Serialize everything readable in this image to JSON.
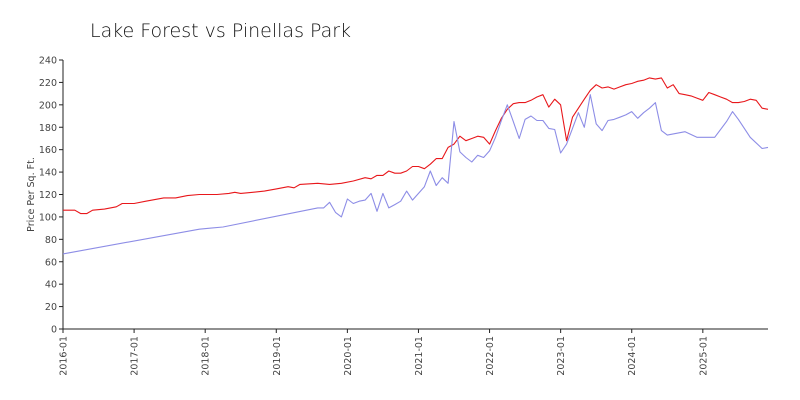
{
  "chart_data": {
    "type": "line",
    "title": "Lake Forest vs Pinellas Park",
    "xlabel": "",
    "ylabel": "Price Per Sq. Ft.",
    "ylim": [
      0,
      240
    ],
    "yticks": [
      0,
      20,
      40,
      60,
      80,
      100,
      120,
      140,
      160,
      180,
      200,
      220,
      240
    ],
    "xlim": [
      "2016-01",
      "2025-12"
    ],
    "xticks": [
      "2016-01",
      "2017-01",
      "2018-01",
      "2019-01",
      "2020-01",
      "2021-01",
      "2022-01",
      "2023-01",
      "2024-01",
      "2025-01"
    ],
    "grid": false,
    "legend": "none",
    "series": [
      {
        "color": "#e8171b",
        "points": [
          [
            "2016-01",
            106
          ],
          [
            "2016-03",
            106
          ],
          [
            "2016-04",
            103
          ],
          [
            "2016-05",
            103
          ],
          [
            "2016-06",
            106
          ],
          [
            "2016-08",
            107
          ],
          [
            "2016-10",
            109
          ],
          [
            "2016-11",
            112
          ],
          [
            "2017-01",
            112
          ],
          [
            "2017-03",
            114
          ],
          [
            "2017-06",
            117
          ],
          [
            "2017-08",
            117
          ],
          [
            "2017-10",
            119
          ],
          [
            "2017-12",
            120
          ],
          [
            "2018-03",
            120
          ],
          [
            "2018-05",
            121
          ],
          [
            "2018-06",
            122
          ],
          [
            "2018-07",
            121
          ],
          [
            "2018-09",
            122
          ],
          [
            "2018-11",
            123
          ],
          [
            "2019-01",
            125
          ],
          [
            "2019-03",
            127
          ],
          [
            "2019-04",
            126
          ],
          [
            "2019-05",
            129
          ],
          [
            "2019-08",
            130
          ],
          [
            "2019-10",
            129
          ],
          [
            "2019-12",
            130
          ],
          [
            "2020-02",
            132
          ],
          [
            "2020-04",
            135
          ],
          [
            "2020-05",
            134
          ],
          [
            "2020-06",
            137
          ],
          [
            "2020-07",
            137
          ],
          [
            "2020-08",
            141
          ],
          [
            "2020-09",
            139
          ],
          [
            "2020-10",
            139
          ],
          [
            "2020-11",
            141
          ],
          [
            "2020-12",
            145
          ],
          [
            "2021-01",
            145
          ],
          [
            "2021-02",
            143
          ],
          [
            "2021-03",
            147
          ],
          [
            "2021-04",
            152
          ],
          [
            "2021-05",
            152
          ],
          [
            "2021-06",
            162
          ],
          [
            "2021-07",
            165
          ],
          [
            "2021-08",
            172
          ],
          [
            "2021-09",
            168
          ],
          [
            "2021-10",
            170
          ],
          [
            "2021-11",
            172
          ],
          [
            "2021-12",
            171
          ],
          [
            "2022-01",
            165
          ],
          [
            "2022-02",
            177
          ],
          [
            "2022-03",
            188
          ],
          [
            "2022-04",
            196
          ],
          [
            "2022-05",
            201
          ],
          [
            "2022-06",
            202
          ],
          [
            "2022-07",
            202
          ],
          [
            "2022-08",
            204
          ],
          [
            "2022-09",
            207
          ],
          [
            "2022-10",
            209
          ],
          [
            "2022-11",
            198
          ],
          [
            "2022-12",
            205
          ],
          [
            "2023-01",
            200
          ],
          [
            "2023-02",
            168
          ],
          [
            "2023-03",
            189
          ],
          [
            "2023-04",
            197
          ],
          [
            "2023-05",
            205
          ],
          [
            "2023-06",
            213
          ],
          [
            "2023-07",
            218
          ],
          [
            "2023-08",
            215
          ],
          [
            "2023-09",
            216
          ],
          [
            "2023-10",
            214
          ],
          [
            "2023-11",
            216
          ],
          [
            "2023-12",
            218
          ],
          [
            "2024-01",
            219
          ],
          [
            "2024-02",
            221
          ],
          [
            "2024-03",
            222
          ],
          [
            "2024-04",
            224
          ],
          [
            "2024-05",
            223
          ],
          [
            "2024-06",
            224
          ],
          [
            "2024-07",
            215
          ],
          [
            "2024-08",
            218
          ],
          [
            "2024-09",
            210
          ],
          [
            "2024-10",
            209
          ],
          [
            "2024-11",
            208
          ],
          [
            "2024-12",
            206
          ],
          [
            "2025-01",
            204
          ],
          [
            "2025-02",
            211
          ],
          [
            "2025-03",
            209
          ],
          [
            "2025-04",
            207
          ],
          [
            "2025-05",
            205
          ],
          [
            "2025-06",
            202
          ],
          [
            "2025-07",
            202
          ],
          [
            "2025-08",
            203
          ],
          [
            "2025-09",
            205
          ],
          [
            "2025-10",
            204
          ],
          [
            "2025-11",
            197
          ],
          [
            "2025-12",
            196
          ]
        ]
      },
      {
        "color": "#8d8de6",
        "points": [
          [
            "2016-01",
            67
          ],
          [
            "2017-12",
            89
          ],
          [
            "2018-02",
            90
          ],
          [
            "2018-04",
            91
          ],
          [
            "2019-08",
            108
          ],
          [
            "2019-09",
            108
          ],
          [
            "2019-10",
            113
          ],
          [
            "2019-11",
            104
          ],
          [
            "2019-12",
            100
          ],
          [
            "2020-01",
            116
          ],
          [
            "2020-02",
            112
          ],
          [
            "2020-03",
            114
          ],
          [
            "2020-04",
            115
          ],
          [
            "2020-05",
            121
          ],
          [
            "2020-06",
            105
          ],
          [
            "2020-07",
            121
          ],
          [
            "2020-08",
            108
          ],
          [
            "2020-09",
            111
          ],
          [
            "2020-10",
            114
          ],
          [
            "2020-11",
            123
          ],
          [
            "2020-12",
            115
          ],
          [
            "2021-01",
            121
          ],
          [
            "2021-02",
            127
          ],
          [
            "2021-03",
            141
          ],
          [
            "2021-04",
            128
          ],
          [
            "2021-05",
            135
          ],
          [
            "2021-06",
            130
          ],
          [
            "2021-07",
            185
          ],
          [
            "2021-08",
            158
          ],
          [
            "2021-09",
            153
          ],
          [
            "2021-10",
            149
          ],
          [
            "2021-11",
            155
          ],
          [
            "2021-12",
            153
          ],
          [
            "2022-01",
            159
          ],
          [
            "2022-02",
            171
          ],
          [
            "2022-03",
            186
          ],
          [
            "2022-04",
            200
          ],
          [
            "2022-05",
            185
          ],
          [
            "2022-06",
            170
          ],
          [
            "2022-07",
            187
          ],
          [
            "2022-08",
            190
          ],
          [
            "2022-09",
            186
          ],
          [
            "2022-10",
            186
          ],
          [
            "2022-11",
            179
          ],
          [
            "2022-12",
            178
          ],
          [
            "2023-01",
            157
          ],
          [
            "2023-02",
            165
          ],
          [
            "2023-03",
            179
          ],
          [
            "2023-04",
            193
          ],
          [
            "2023-05",
            180
          ],
          [
            "2023-06",
            209
          ],
          [
            "2023-07",
            183
          ],
          [
            "2023-08",
            177
          ],
          [
            "2023-09",
            186
          ],
          [
            "2023-10",
            187
          ],
          [
            "2023-11",
            189
          ],
          [
            "2023-12",
            191
          ],
          [
            "2024-01",
            194
          ],
          [
            "2024-02",
            188
          ],
          [
            "2024-03",
            193
          ],
          [
            "2024-04",
            197
          ],
          [
            "2024-05",
            202
          ],
          [
            "2024-06",
            177
          ],
          [
            "2024-07",
            173
          ],
          [
            "2024-10",
            176
          ],
          [
            "2024-12",
            171
          ],
          [
            "2025-02",
            171
          ],
          [
            "2025-03",
            171
          ],
          [
            "2025-05",
            185
          ],
          [
            "2025-06",
            194
          ],
          [
            "2025-07",
            187
          ],
          [
            "2025-09",
            171
          ],
          [
            "2025-11",
            161
          ],
          [
            "2025-12",
            162
          ]
        ]
      }
    ]
  }
}
